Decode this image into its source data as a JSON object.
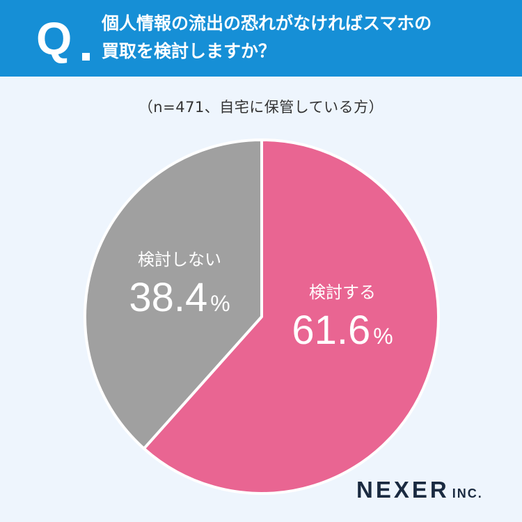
{
  "header": {
    "q_label": "Q",
    "question_line1": "個人情報の流出の恐れがなければスマホの",
    "question_line2": "買取を検討しますか？"
  },
  "sample_note": "（n=471、自宅に保管している方）",
  "chart_data": {
    "type": "pie",
    "title": "個人情報の流出の恐れがなければスマホの買取を検討しますか？",
    "slices": [
      {
        "label": "検討する",
        "value": 61.6,
        "display": "61.6",
        "unit": "%",
        "color": "#e96592"
      },
      {
        "label": "検討しない",
        "value": 38.4,
        "display": "38.4",
        "unit": "%",
        "color": "#a0a0a0"
      }
    ],
    "start_angle": "12 o'clock",
    "direction": "clockwise"
  },
  "logo": {
    "main": "NEXER",
    "sub": "INC."
  },
  "colors": {
    "header_bg": "#168fd6",
    "page_bg": "#eef5fd",
    "slice_border": "#ffffff"
  }
}
